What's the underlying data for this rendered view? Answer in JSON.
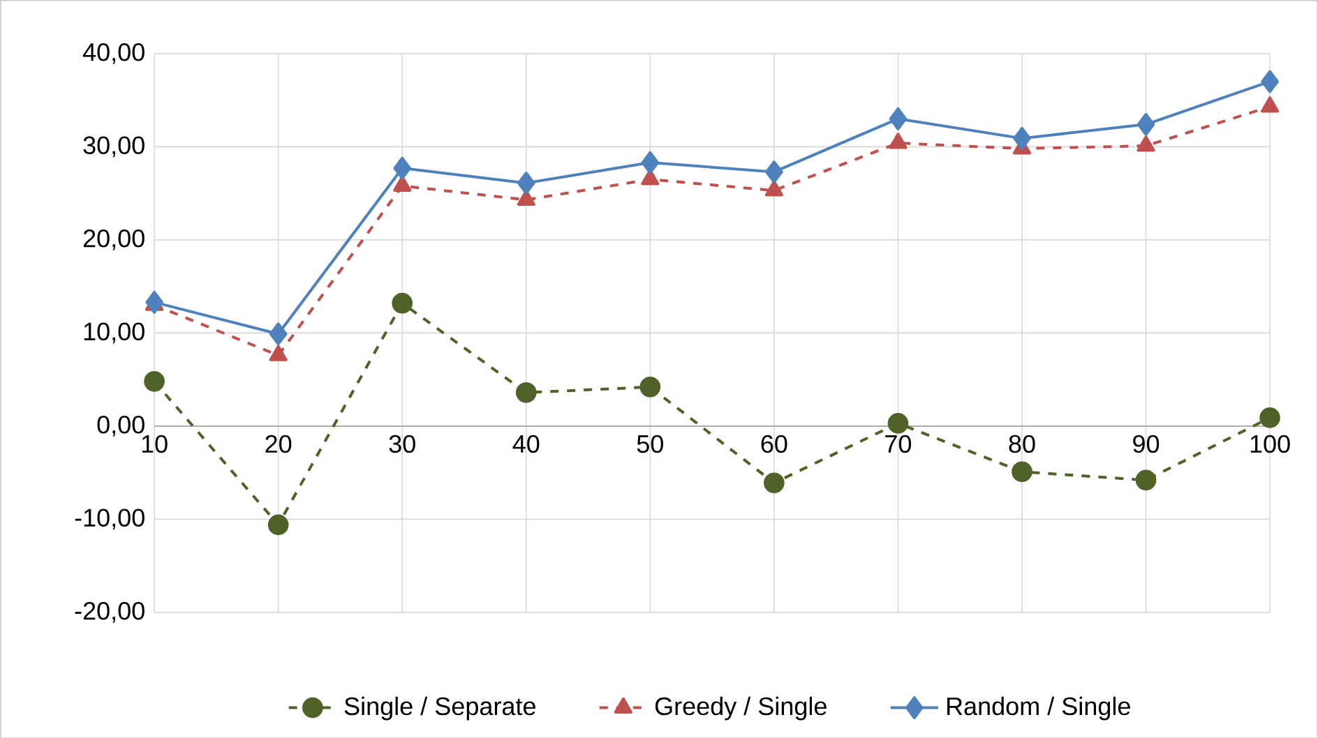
{
  "chart_data": {
    "type": "line",
    "categories": [
      "10",
      "20",
      "30",
      "40",
      "50",
      "60",
      "70",
      "80",
      "90",
      "100"
    ],
    "series": [
      {
        "name": "Single / Separate",
        "color": "#4f6228",
        "marker": "circle",
        "line_style": "dashed",
        "values": [
          4.8,
          -10.6,
          13.2,
          3.6,
          4.2,
          -6.1,
          0.3,
          -4.9,
          -5.8,
          0.9
        ]
      },
      {
        "name": "Greedy / Single",
        "color": "#c0504d",
        "marker": "triangle",
        "line_style": "dashed",
        "values": [
          13.0,
          7.6,
          25.8,
          24.3,
          26.5,
          25.3,
          30.4,
          29.8,
          30.1,
          34.3
        ]
      },
      {
        "name": "Random / Single",
        "color": "#4f81bd",
        "marker": "diamond",
        "line_style": "solid",
        "values": [
          13.3,
          9.9,
          27.7,
          26.1,
          28.3,
          27.3,
          33.0,
          30.9,
          32.4,
          37.0
        ]
      }
    ],
    "ylim": [
      -20,
      40
    ],
    "yticks": [
      {
        "value": -20,
        "label": "-20,00"
      },
      {
        "value": -10,
        "label": "-10,00"
      },
      {
        "value": 0,
        "label": "0,00"
      },
      {
        "value": 10,
        "label": "10,00"
      },
      {
        "value": 20,
        "label": "20,00"
      },
      {
        "value": 30,
        "label": "30,00"
      },
      {
        "value": 40,
        "label": "40,00"
      }
    ],
    "grid": true,
    "legend": "bottom"
  }
}
